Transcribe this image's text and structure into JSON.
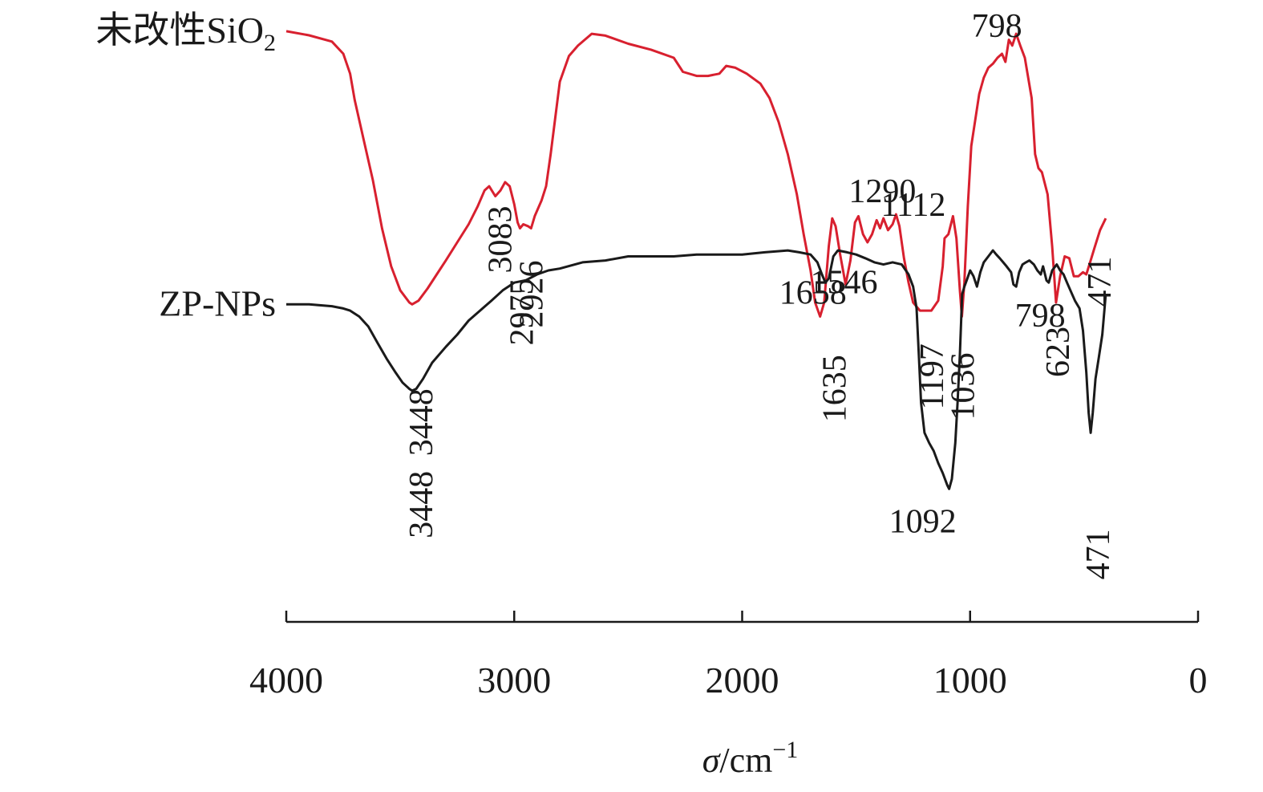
{
  "chart_data": {
    "type": "line",
    "x_axis": {
      "label_symbol": "σ",
      "label_unit": "/cm",
      "label_exponent": "−1",
      "range": [
        4000,
        0
      ],
      "reversed": true,
      "ticks": [
        4000,
        3000,
        2000,
        1000,
        0
      ],
      "tick_labels": [
        "4000",
        "3000",
        "2000",
        "1000",
        "0"
      ]
    },
    "y_axis": {
      "visible": false,
      "note_values": "transmittance, arbitrary offset units"
    },
    "grid": false,
    "series": [
      {
        "name": "未改性SiO2",
        "label_main": "未改性SiO",
        "label_sub": "2",
        "color": "#d8202f",
        "points": [
          [
            4000,
            98.5
          ],
          [
            3900,
            97.4
          ],
          [
            3800,
            95.7
          ],
          [
            3750,
            92.4
          ],
          [
            3720,
            87.0
          ],
          [
            3700,
            79.9
          ],
          [
            3660,
            69.0
          ],
          [
            3620,
            58.1
          ],
          [
            3580,
            45.1
          ],
          [
            3540,
            34.8
          ],
          [
            3500,
            28.3
          ],
          [
            3460,
            25.0
          ],
          [
            3448,
            24.5
          ],
          [
            3420,
            25.5
          ],
          [
            3380,
            28.8
          ],
          [
            3340,
            32.6
          ],
          [
            3300,
            36.4
          ],
          [
            3250,
            41.3
          ],
          [
            3200,
            46.2
          ],
          [
            3160,
            51.1
          ],
          [
            3130,
            55.4
          ],
          [
            3110,
            56.5
          ],
          [
            3083,
            53.8
          ],
          [
            3060,
            55.4
          ],
          [
            3040,
            57.6
          ],
          [
            3020,
            56.5
          ],
          [
            3000,
            51.6
          ],
          [
            2985,
            46.7
          ],
          [
            2975,
            45.1
          ],
          [
            2960,
            46.2
          ],
          [
            2940,
            45.7
          ],
          [
            2926,
            45.1
          ],
          [
            2910,
            48.4
          ],
          [
            2880,
            52.7
          ],
          [
            2860,
            56.5
          ],
          [
            2840,
            65.2
          ],
          [
            2820,
            75.0
          ],
          [
            2800,
            84.8
          ],
          [
            2760,
            91.8
          ],
          [
            2720,
            94.6
          ],
          [
            2660,
            97.8
          ],
          [
            2600,
            97.3
          ],
          [
            2500,
            95.1
          ],
          [
            2400,
            93.5
          ],
          [
            2300,
            91.3
          ],
          [
            2260,
            87.5
          ],
          [
            2200,
            86.4
          ],
          [
            2150,
            86.4
          ],
          [
            2100,
            87.0
          ],
          [
            2070,
            89.1
          ],
          [
            2030,
            88.6
          ],
          [
            1980,
            87.0
          ],
          [
            1920,
            84.3
          ],
          [
            1880,
            80.4
          ],
          [
            1840,
            73.9
          ],
          [
            1800,
            65.2
          ],
          [
            1760,
            54.3
          ],
          [
            1730,
            43.5
          ],
          [
            1700,
            33.7
          ],
          [
            1680,
            25.0
          ],
          [
            1658,
            21.2
          ],
          [
            1640,
            25.0
          ],
          [
            1620,
            40.2
          ],
          [
            1605,
            47.8
          ],
          [
            1590,
            45.7
          ],
          [
            1570,
            38.0
          ],
          [
            1546,
            29.9
          ],
          [
            1525,
            36.4
          ],
          [
            1505,
            46.7
          ],
          [
            1490,
            48.4
          ],
          [
            1470,
            43.5
          ],
          [
            1450,
            41.3
          ],
          [
            1430,
            43.5
          ],
          [
            1410,
            47.3
          ],
          [
            1395,
            45.1
          ],
          [
            1380,
            47.8
          ],
          [
            1360,
            44.6
          ],
          [
            1340,
            46.2
          ],
          [
            1325,
            48.9
          ],
          [
            1310,
            45.7
          ],
          [
            1290,
            37.0
          ],
          [
            1270,
            30.4
          ],
          [
            1250,
            25.0
          ],
          [
            1220,
            22.8
          ],
          [
            1197,
            22.8
          ],
          [
            1170,
            22.8
          ],
          [
            1140,
            25.5
          ],
          [
            1120,
            34.8
          ],
          [
            1112,
            42.4
          ],
          [
            1095,
            43.5
          ],
          [
            1075,
            48.4
          ],
          [
            1060,
            42.4
          ],
          [
            1045,
            28.3
          ],
          [
            1036,
            21.2
          ],
          [
            1025,
            30.4
          ],
          [
            1010,
            51.1
          ],
          [
            995,
            67.4
          ],
          [
            975,
            75.5
          ],
          [
            960,
            81.5
          ],
          [
            940,
            85.9
          ],
          [
            920,
            88.6
          ],
          [
            900,
            89.7
          ],
          [
            880,
            91.3
          ],
          [
            860,
            92.4
          ],
          [
            845,
            90.2
          ],
          [
            830,
            96.2
          ],
          [
            815,
            94.6
          ],
          [
            798,
            97.8
          ],
          [
            780,
            94.6
          ],
          [
            760,
            91.3
          ],
          [
            745,
            85.9
          ],
          [
            730,
            80.4
          ],
          [
            715,
            65.2
          ],
          [
            700,
            61.4
          ],
          [
            685,
            60.3
          ],
          [
            660,
            54.3
          ],
          [
            640,
            40.2
          ],
          [
            623,
            25.0
          ],
          [
            605,
            32.1
          ],
          [
            585,
            37.5
          ],
          [
            565,
            37.0
          ],
          [
            545,
            32.1
          ],
          [
            525,
            32.1
          ],
          [
            505,
            33.2
          ],
          [
            490,
            32.6
          ],
          [
            471,
            36.4
          ],
          [
            455,
            39.7
          ],
          [
            430,
            44.6
          ],
          [
            405,
            47.8
          ]
        ]
      },
      {
        "name": "ZP-NPs",
        "label_main": "ZP-NPs",
        "label_sub": "",
        "color": "#1a1a1a",
        "points": [
          [
            4000,
            24.5
          ],
          [
            3900,
            24.5
          ],
          [
            3800,
            24.0
          ],
          [
            3750,
            23.4
          ],
          [
            3720,
            22.8
          ],
          [
            3680,
            21.2
          ],
          [
            3640,
            18.5
          ],
          [
            3600,
            14.1
          ],
          [
            3560,
            9.8
          ],
          [
            3520,
            6.0
          ],
          [
            3490,
            3.3
          ],
          [
            3460,
            1.6
          ],
          [
            3448,
            1.1
          ],
          [
            3430,
            1.6
          ],
          [
            3400,
            4.3
          ],
          [
            3360,
            8.7
          ],
          [
            3300,
            13.0
          ],
          [
            3250,
            16.3
          ],
          [
            3200,
            20.1
          ],
          [
            3150,
            22.8
          ],
          [
            3100,
            25.5
          ],
          [
            3050,
            28.3
          ],
          [
            3000,
            30.4
          ],
          [
            2950,
            31.0
          ],
          [
            2900,
            32.6
          ],
          [
            2850,
            33.7
          ],
          [
            2800,
            34.2
          ],
          [
            2700,
            35.9
          ],
          [
            2600,
            36.4
          ],
          [
            2500,
            37.5
          ],
          [
            2400,
            37.5
          ],
          [
            2300,
            37.5
          ],
          [
            2200,
            38.0
          ],
          [
            2100,
            38.0
          ],
          [
            2000,
            38.0
          ],
          [
            1900,
            38.6
          ],
          [
            1800,
            39.1
          ],
          [
            1750,
            38.6
          ],
          [
            1700,
            38.0
          ],
          [
            1670,
            35.9
          ],
          [
            1650,
            32.6
          ],
          [
            1635,
            30.4
          ],
          [
            1620,
            31.5
          ],
          [
            1600,
            37.5
          ],
          [
            1580,
            39.1
          ],
          [
            1540,
            38.6
          ],
          [
            1500,
            38.0
          ],
          [
            1460,
            37.0
          ],
          [
            1420,
            35.9
          ],
          [
            1380,
            35.3
          ],
          [
            1340,
            35.9
          ],
          [
            1300,
            35.3
          ],
          [
            1270,
            32.6
          ],
          [
            1250,
            29.3
          ],
          [
            1235,
            23.4
          ],
          [
            1225,
            10.9
          ],
          [
            1215,
            -2.2
          ],
          [
            1200,
            -10.3
          ],
          [
            1180,
            -13.0
          ],
          [
            1160,
            -15.2
          ],
          [
            1140,
            -18.5
          ],
          [
            1120,
            -21.2
          ],
          [
            1100,
            -24.5
          ],
          [
            1092,
            -25.5
          ],
          [
            1080,
            -22.8
          ],
          [
            1065,
            -13.0
          ],
          [
            1055,
            -2.2
          ],
          [
            1045,
            10.9
          ],
          [
            1035,
            27.2
          ],
          [
            1025,
            29.3
          ],
          [
            1015,
            31.0
          ],
          [
            1000,
            33.7
          ],
          [
            985,
            32.1
          ],
          [
            970,
            29.3
          ],
          [
            955,
            33.2
          ],
          [
            940,
            35.9
          ],
          [
            920,
            37.5
          ],
          [
            900,
            39.1
          ],
          [
            885,
            38.0
          ],
          [
            870,
            37.0
          ],
          [
            855,
            35.9
          ],
          [
            840,
            34.8
          ],
          [
            820,
            33.2
          ],
          [
            810,
            29.9
          ],
          [
            798,
            29.3
          ],
          [
            785,
            33.2
          ],
          [
            770,
            35.3
          ],
          [
            755,
            35.9
          ],
          [
            740,
            36.4
          ],
          [
            720,
            35.3
          ],
          [
            705,
            33.7
          ],
          [
            690,
            32.6
          ],
          [
            680,
            34.8
          ],
          [
            665,
            31.0
          ],
          [
            655,
            30.4
          ],
          [
            640,
            33.7
          ],
          [
            620,
            35.3
          ],
          [
            605,
            33.7
          ],
          [
            590,
            32.6
          ],
          [
            575,
            30.4
          ],
          [
            560,
            28.3
          ],
          [
            540,
            25.5
          ],
          [
            520,
            23.4
          ],
          [
            505,
            17.4
          ],
          [
            490,
            6.0
          ],
          [
            480,
            -4.9
          ],
          [
            471,
            -10.3
          ],
          [
            462,
            -4.9
          ],
          [
            450,
            4.3
          ],
          [
            435,
            10.3
          ],
          [
            420,
            16.3
          ],
          [
            405,
            27.2
          ]
        ]
      }
    ],
    "annotations": [
      {
        "text": "3448",
        "series": 0,
        "x": 3448,
        "rotated": true
      },
      {
        "text": "3083",
        "series": 0,
        "x": 3083,
        "rotated": true
      },
      {
        "text": "2975",
        "series": 0,
        "x": 2975,
        "rotated": true
      },
      {
        "text": "2926",
        "series": 0,
        "x": 2926,
        "rotated": true
      },
      {
        "text": "1658",
        "series": 0,
        "x": 1658,
        "rotated": false
      },
      {
        "text": "1546",
        "series": 0,
        "x": 1546,
        "rotated": false
      },
      {
        "text": "1290",
        "series": 0,
        "x": 1290,
        "rotated": false
      },
      {
        "text": "1112",
        "series": 0,
        "x": 1112,
        "rotated": false
      },
      {
        "text": "1197",
        "series": 0,
        "x": 1197,
        "rotated": true
      },
      {
        "text": "1036",
        "series": 0,
        "x": 1036,
        "rotated": true
      },
      {
        "text": "798",
        "series": 0,
        "x": 798,
        "rotated": false
      },
      {
        "text": "623",
        "series": 0,
        "x": 623,
        "rotated": true
      },
      {
        "text": "471",
        "series": 0,
        "x": 471,
        "rotated": true
      },
      {
        "text": "3448",
        "series": 1,
        "x": 3448,
        "rotated": true
      },
      {
        "text": "1635",
        "series": 1,
        "x": 1635,
        "rotated": true
      },
      {
        "text": "1092",
        "series": 1,
        "x": 1092,
        "rotated": false
      },
      {
        "text": "798",
        "series": 1,
        "x": 798,
        "rotated": false
      },
      {
        "text": "471",
        "series": 1,
        "x": 471,
        "rotated": true
      }
    ]
  }
}
